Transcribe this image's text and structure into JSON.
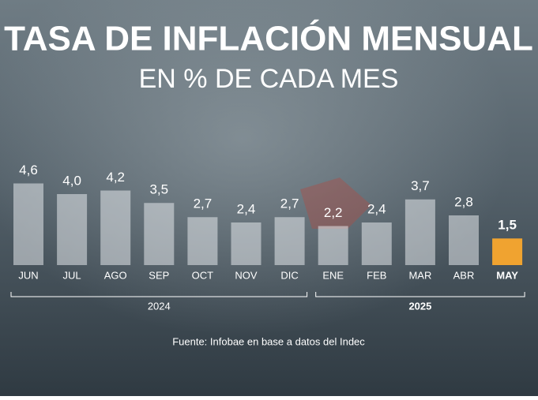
{
  "chart_data": {
    "type": "bar",
    "title": "TASA DE INFLACIÓN MENSUAL",
    "subtitle": "EN % DE CADA MES",
    "categories": [
      "JUN",
      "JUL",
      "AGO",
      "SEP",
      "OCT",
      "NOV",
      "DIC",
      "ENE",
      "FEB",
      "MAR",
      "ABR",
      "MAY"
    ],
    "values": [
      4.6,
      4.0,
      4.2,
      3.5,
      2.7,
      2.4,
      2.7,
      2.2,
      2.4,
      3.7,
      2.8,
      1.5
    ],
    "value_labels": [
      "4,6",
      "4,0",
      "4,2",
      "3,5",
      "2,7",
      "2,4",
      "2,7",
      "2,2",
      "2,4",
      "3,7",
      "2,8",
      "1,5"
    ],
    "colors": [
      "rgba(228,232,235,0.55)",
      "rgba(228,232,235,0.55)",
      "rgba(228,232,235,0.55)",
      "rgba(228,232,235,0.55)",
      "rgba(228,232,235,0.55)",
      "rgba(228,232,235,0.55)",
      "rgba(228,232,235,0.55)",
      "rgba(228,232,235,0.55)",
      "rgba(228,232,235,0.55)",
      "rgba(228,232,235,0.55)",
      "rgba(228,232,235,0.55)",
      "#f0a330"
    ],
    "highlight_index": 11,
    "groups": [
      {
        "label": "2024",
        "count": 7
      },
      {
        "label": "2025",
        "count": 5
      }
    ],
    "source": "Fuente: Infobae en base a datos del Indec"
  }
}
